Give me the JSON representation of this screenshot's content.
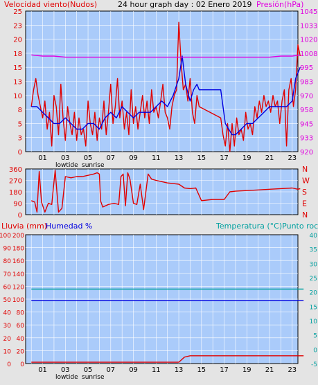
{
  "colors": {
    "bg": "#e4e4e4",
    "plot_bg": "#aacbfa",
    "grid": "#ffffff",
    "red": "#e00000",
    "blue": "#0000e0",
    "magenta": "#e000e0",
    "teal": "#00a0a0",
    "frame": "#000000",
    "axis_text": "#000000"
  },
  "x_ticks": [
    "01",
    "03",
    "05",
    "07",
    "09",
    "11",
    "13",
    "15",
    "17",
    "19",
    "21",
    "23"
  ],
  "x_ticks_bottom": [
    "01",
    "03",
    "05",
    "07",
    "09",
    "11",
    "13",
    "15",
    "17",
    "19",
    "21",
    "23"
  ],
  "markers": {
    "lowtide": "lowtide",
    "sunrise": "sunrise"
  },
  "top": {
    "title_left": "Velocidad viento(Nudos)",
    "title_center": "24 hour graph day : 02 Enero 2019",
    "title_right": "Presión(hPa)",
    "left_ticks": [
      "0",
      "3",
      "5",
      "8",
      "10",
      "13",
      "15",
      "18",
      "20",
      "23",
      "25"
    ],
    "right_ticks": [
      "920",
      "933",
      "945",
      "958",
      "970",
      "983",
      "995",
      "1008",
      "1020",
      "1033",
      "1045"
    ]
  },
  "mid": {
    "left_ticks": [
      "0",
      "90",
      "180",
      "270",
      "360"
    ],
    "right_labels": [
      "N",
      "E",
      "S",
      "W",
      "N"
    ]
  },
  "bottom": {
    "title_left": "Lluvia (mm)",
    "title_mid": "Humedad %",
    "title_right": "Temperatura (°C)Punto rocío",
    "left_ticks": [
      "0",
      "10",
      "20",
      "30",
      "40",
      "50",
      "60",
      "70",
      "80",
      "90",
      "100"
    ],
    "rain_ticks": [
      "0",
      "20",
      "40",
      "60",
      "80",
      "100",
      "120",
      "140",
      "160",
      "180",
      "200"
    ],
    "right_ticks": [
      "-5",
      "0",
      "5",
      "10",
      "15",
      "20",
      "25",
      "30",
      "35",
      "40"
    ]
  },
  "chart_data": [
    {
      "type": "line",
      "ylim": [
        0,
        25
      ],
      "y2lim": [
        920,
        1045
      ],
      "series": [
        {
          "color": "#e00000",
          "x": [
            0.0,
            0.2,
            0.4,
            0.6,
            0.8,
            1.0,
            1.2,
            1.4,
            1.6,
            1.8,
            2.0,
            2.2,
            2.4,
            2.6,
            2.8,
            3.0,
            3.2,
            3.4,
            3.6,
            3.8,
            4.0,
            4.2,
            4.4,
            4.6,
            4.8,
            5.0,
            5.2,
            5.4,
            5.6,
            5.8,
            6.0,
            6.2,
            6.4,
            6.6,
            6.8,
            7.0,
            7.2,
            7.4,
            7.6,
            7.8,
            8.0,
            8.2,
            8.4,
            8.6,
            8.8,
            9.0,
            9.2,
            9.4,
            9.6,
            9.8,
            10.0,
            10.2,
            10.4,
            10.6,
            10.8,
            11.0,
            11.2,
            11.4,
            11.6,
            11.8,
            12.0,
            12.2,
            12.4,
            12.6,
            12.8,
            13.0,
            13.2,
            13.4,
            13.6,
            13.8,
            14.0,
            14.2,
            14.4,
            14.6,
            14.8,
            16.7,
            16.9,
            17.1,
            17.3,
            17.5,
            17.7,
            17.9,
            18.1,
            18.3,
            18.5,
            18.7,
            18.9,
            19.1,
            19.3,
            19.5,
            19.7,
            19.9,
            20.1,
            20.3,
            20.5,
            20.7,
            20.9,
            21.1,
            21.3,
            21.5,
            21.7,
            21.9,
            22.1,
            22.3,
            22.5,
            22.7,
            22.9,
            23.1,
            23.3,
            23.5,
            23.7
          ],
          "values": [
            8,
            11,
            13,
            10,
            8,
            6,
            9,
            4,
            7,
            1,
            10,
            8,
            3,
            12,
            6,
            2,
            8,
            5,
            3,
            7,
            2,
            6,
            3,
            4,
            1,
            9,
            5,
            3,
            7,
            2,
            6,
            4,
            9,
            3,
            7,
            12,
            5,
            8,
            13,
            6,
            9,
            4,
            7,
            3,
            11,
            5,
            8,
            4,
            7,
            10,
            6,
            9,
            5,
            11,
            7,
            8,
            6,
            9,
            12,
            7,
            6,
            4,
            8,
            10,
            11,
            23,
            16,
            11,
            12,
            9,
            13,
            7,
            5,
            10,
            8,
            6,
            3,
            1,
            5,
            0,
            5,
            1,
            6,
            3,
            4,
            2,
            7,
            4,
            5,
            3,
            8,
            6,
            9,
            7,
            10,
            8,
            9,
            7,
            10,
            8,
            9,
            5,
            9,
            11,
            1,
            11,
            13,
            8,
            11,
            19,
            17
          ]
        },
        {
          "color": "#0000e0",
          "x": [
            0.0,
            0.5,
            1.0,
            1.5,
            2.0,
            2.5,
            3.0,
            3.5,
            4.0,
            4.5,
            5.0,
            5.5,
            6.0,
            6.5,
            7.0,
            7.5,
            8.0,
            8.5,
            9.0,
            9.5,
            10.0,
            10.5,
            11.0,
            11.5,
            12.0,
            12.5,
            13.0,
            13.3,
            13.6,
            14.0,
            14.3,
            14.6,
            14.8,
            16.7,
            16.9,
            17.1,
            17.4,
            17.7,
            18.0,
            18.5,
            19.0,
            19.5,
            20.0,
            20.5,
            21.0,
            21.5,
            22.0,
            22.5,
            23.0,
            23.3,
            23.7
          ],
          "values": [
            8,
            8,
            7,
            6,
            5,
            5,
            6,
            5,
            4,
            4,
            5,
            5,
            4,
            6,
            7,
            6,
            8,
            7,
            6,
            7,
            7,
            7,
            8,
            9,
            8,
            10,
            13,
            17,
            12,
            9,
            11,
            12,
            11,
            11,
            8,
            5,
            4,
            3,
            3,
            4,
            5,
            5,
            6,
            7,
            8,
            8,
            8,
            8,
            9,
            13,
            15
          ]
        },
        {
          "color": "#e000e0",
          "x": [
            0.0,
            1.0,
            2.0,
            3.0,
            4.0,
            5.0,
            6.0,
            7.0,
            8.0,
            9.0,
            10.0,
            11.0,
            12.0,
            13.0,
            14.0,
            15.0,
            16.0,
            17.0,
            18.0,
            19.0,
            20.0,
            21.0,
            22.0,
            23.0,
            23.7
          ],
          "values": [
            1006,
            1005,
            1005,
            1004,
            1004,
            1004,
            1004,
            1004,
            1004,
            1004,
            1004,
            1004,
            1004,
            1004,
            1004,
            1004,
            1004,
            1004,
            1004,
            1004,
            1004,
            1004,
            1005,
            1005,
            1006
          ]
        }
      ]
    },
    {
      "type": "line",
      "ylim": [
        0,
        360
      ],
      "series": [
        {
          "color": "#e00000",
          "x": [
            0.0,
            0.3,
            0.5,
            0.7,
            0.9,
            1.2,
            1.5,
            1.8,
            2.1,
            2.4,
            2.7,
            3.0,
            3.5,
            4.0,
            4.5,
            5.0,
            5.5,
            5.8,
            6.0,
            6.1,
            6.3,
            6.8,
            7.3,
            7.7,
            7.9,
            8.1,
            8.3,
            8.5,
            8.7,
            9.0,
            9.3,
            9.6,
            9.9,
            10.3,
            10.6,
            11.0,
            11.5,
            12.0,
            12.5,
            13.0,
            13.5,
            14.0,
            14.5,
            15.0,
            16.0,
            17.0,
            17.5,
            18.0,
            19.0,
            20.0,
            21.0,
            22.0,
            23.0,
            23.5,
            23.7
          ],
          "values": [
            110,
            100,
            20,
            340,
            100,
            20,
            90,
            80,
            350,
            20,
            50,
            300,
            290,
            300,
            300,
            310,
            320,
            330,
            320,
            110,
            60,
            80,
            90,
            80,
            300,
            320,
            70,
            330,
            280,
            90,
            80,
            240,
            40,
            320,
            280,
            270,
            260,
            250,
            245,
            240,
            210,
            205,
            210,
            110,
            120,
            120,
            180,
            185,
            190,
            195,
            200,
            205,
            210,
            200,
            205
          ]
        }
      ]
    },
    {
      "type": "line",
      "ylim": [
        0,
        100
      ],
      "y2lim": [
        -5,
        40
      ],
      "series": [
        {
          "color": "#e00000",
          "x": [
            0.0,
            13.0,
            13.5,
            14.0,
            24.0
          ],
          "values": [
            1,
            1,
            5,
            6,
            6
          ]
        },
        {
          "color": "#0000e0",
          "x": [
            0.0,
            24.0
          ],
          "values": [
            49,
            49
          ]
        },
        {
          "color": "#00a0a0",
          "x": [
            0.0,
            24.0
          ],
          "values": [
            21,
            21
          ]
        }
      ]
    }
  ]
}
